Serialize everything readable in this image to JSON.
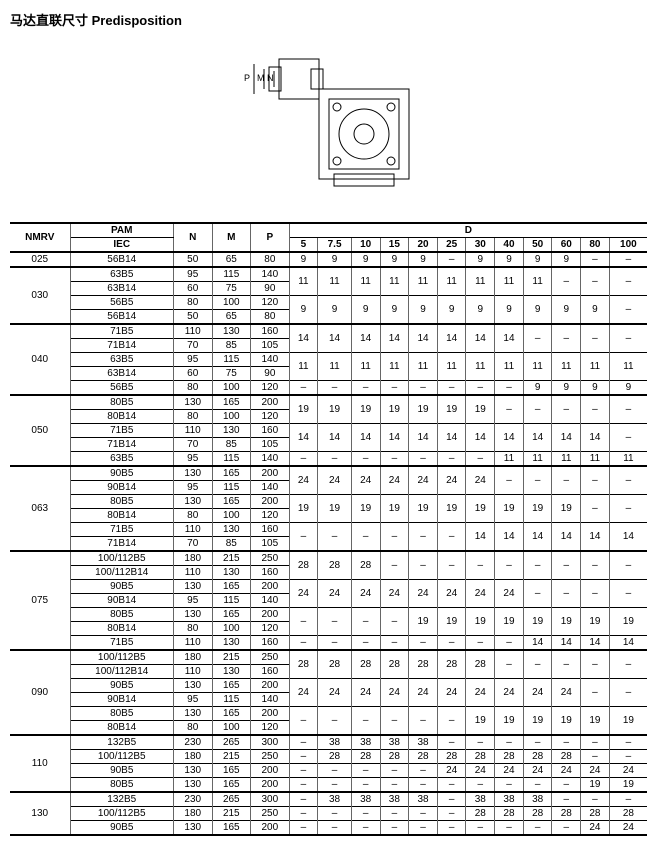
{
  "title": "马达直联尺寸 Predisposition",
  "dim_labels": {
    "p": "P",
    "m": "M",
    "n": "N"
  },
  "headers": {
    "nmrv": "NMRV",
    "pam": "PAM",
    "iec": "IEC",
    "n": "N",
    "m": "M",
    "p": "P",
    "d": "D"
  },
  "d_cols": [
    "5",
    "7.5",
    "10",
    "15",
    "20",
    "25",
    "30",
    "40",
    "50",
    "60",
    "80",
    "100"
  ],
  "groups": [
    {
      "nmrv": "025",
      "rows": [
        {
          "iec": "56B14",
          "n": "50",
          "m": "65",
          "p": "80",
          "d": [
            "9",
            "9",
            "9",
            "9",
            "9",
            "–",
            "9",
            "9",
            "9",
            "9",
            "–",
            "–"
          ]
        }
      ]
    },
    {
      "nmrv": "030",
      "rows": [
        {
          "iec": "63B5",
          "n": "95",
          "m": "115",
          "p": "140",
          "d": [
            "11",
            "11",
            "11",
            "11",
            "11",
            "11",
            "11",
            "11",
            "11",
            "–",
            "–",
            "–"
          ],
          "span": 2
        },
        {
          "iec": "63B14",
          "n": "60",
          "m": "75",
          "p": "90"
        },
        {
          "iec": "56B5",
          "n": "80",
          "m": "100",
          "p": "120",
          "d": [
            "9",
            "9",
            "9",
            "9",
            "9",
            "9",
            "9",
            "9",
            "9",
            "9",
            "9",
            "–"
          ],
          "span": 2
        },
        {
          "iec": "56B14",
          "n": "50",
          "m": "65",
          "p": "80"
        }
      ]
    },
    {
      "nmrv": "040",
      "rows": [
        {
          "iec": "71B5",
          "n": "110",
          "m": "130",
          "p": "160",
          "d": [
            "14",
            "14",
            "14",
            "14",
            "14",
            "14",
            "14",
            "14",
            "–",
            "–",
            "–",
            "–"
          ],
          "span": 2
        },
        {
          "iec": "71B14",
          "n": "70",
          "m": "85",
          "p": "105"
        },
        {
          "iec": "63B5",
          "n": "95",
          "m": "115",
          "p": "140",
          "d": [
            "11",
            "11",
            "11",
            "11",
            "11",
            "11",
            "11",
            "11",
            "11",
            "11",
            "11",
            "11"
          ],
          "span": 2
        },
        {
          "iec": "63B14",
          "n": "60",
          "m": "75",
          "p": "90"
        },
        {
          "iec": "56B5",
          "n": "80",
          "m": "100",
          "p": "120",
          "d": [
            "–",
            "–",
            "–",
            "–",
            "–",
            "–",
            "–",
            "–",
            "9",
            "9",
            "9",
            "9"
          ]
        }
      ]
    },
    {
      "nmrv": "050",
      "rows": [
        {
          "iec": "80B5",
          "n": "130",
          "m": "165",
          "p": "200",
          "d": [
            "19",
            "19",
            "19",
            "19",
            "19",
            "19",
            "19",
            "–",
            "–",
            "–",
            "–",
            "–"
          ],
          "span": 2
        },
        {
          "iec": "80B14",
          "n": "80",
          "m": "100",
          "p": "120"
        },
        {
          "iec": "71B5",
          "n": "110",
          "m": "130",
          "p": "160",
          "d": [
            "14",
            "14",
            "14",
            "14",
            "14",
            "14",
            "14",
            "14",
            "14",
            "14",
            "14",
            "–"
          ],
          "span": 2
        },
        {
          "iec": "71B14",
          "n": "70",
          "m": "85",
          "p": "105"
        },
        {
          "iec": "63B5",
          "n": "95",
          "m": "115",
          "p": "140",
          "d": [
            "–",
            "–",
            "–",
            "–",
            "–",
            "–",
            "–",
            "11",
            "11",
            "11",
            "11",
            "11"
          ]
        }
      ]
    },
    {
      "nmrv": "063",
      "rows": [
        {
          "iec": "90B5",
          "n": "130",
          "m": "165",
          "p": "200",
          "d": [
            "24",
            "24",
            "24",
            "24",
            "24",
            "24",
            "24",
            "–",
            "–",
            "–",
            "–",
            "–"
          ],
          "span": 2
        },
        {
          "iec": "90B14",
          "n": "95",
          "m": "115",
          "p": "140"
        },
        {
          "iec": "80B5",
          "n": "130",
          "m": "165",
          "p": "200",
          "d": [
            "19",
            "19",
            "19",
            "19",
            "19",
            "19",
            "19",
            "19",
            "19",
            "19",
            "–",
            "–"
          ],
          "span": 2
        },
        {
          "iec": "80B14",
          "n": "80",
          "m": "100",
          "p": "120"
        },
        {
          "iec": "71B5",
          "n": "110",
          "m": "130",
          "p": "160",
          "d": [
            "–",
            "–",
            "–",
            "–",
            "–",
            "–",
            "14",
            "14",
            "14",
            "14",
            "14",
            "14"
          ],
          "span": 2
        },
        {
          "iec": "71B14",
          "n": "70",
          "m": "85",
          "p": "105"
        }
      ]
    },
    {
      "nmrv": "075",
      "rows": [
        {
          "iec": "100/112B5",
          "n": "180",
          "m": "215",
          "p": "250",
          "d": [
            "28",
            "28",
            "28",
            "–",
            "–",
            "–",
            "–",
            "–",
            "–",
            "–",
            "–",
            "–"
          ],
          "span": 2
        },
        {
          "iec": "100/112B14",
          "n": "110",
          "m": "130",
          "p": "160"
        },
        {
          "iec": "90B5",
          "n": "130",
          "m": "165",
          "p": "200",
          "d": [
            "24",
            "24",
            "24",
            "24",
            "24",
            "24",
            "24",
            "24",
            "–",
            "–",
            "–",
            "–"
          ],
          "span": 2
        },
        {
          "iec": "90B14",
          "n": "95",
          "m": "115",
          "p": "140"
        },
        {
          "iec": "80B5",
          "n": "130",
          "m": "165",
          "p": "200",
          "d": [
            "–",
            "–",
            "–",
            "–",
            "19",
            "19",
            "19",
            "19",
            "19",
            "19",
            "19",
            "19"
          ],
          "span": 2
        },
        {
          "iec": "80B14",
          "n": "80",
          "m": "100",
          "p": "120"
        },
        {
          "iec": "71B5",
          "n": "110",
          "m": "130",
          "p": "160",
          "d": [
            "–",
            "–",
            "–",
            "–",
            "–",
            "–",
            "–",
            "–",
            "14",
            "14",
            "14",
            "14"
          ]
        }
      ]
    },
    {
      "nmrv": "090",
      "rows": [
        {
          "iec": "100/112B5",
          "n": "180",
          "m": "215",
          "p": "250",
          "d": [
            "28",
            "28",
            "28",
            "28",
            "28",
            "28",
            "28",
            "–",
            "–",
            "–",
            "–",
            "–"
          ],
          "span": 2
        },
        {
          "iec": "100/112B14",
          "n": "110",
          "m": "130",
          "p": "160"
        },
        {
          "iec": "90B5",
          "n": "130",
          "m": "165",
          "p": "200",
          "d": [
            "24",
            "24",
            "24",
            "24",
            "24",
            "24",
            "24",
            "24",
            "24",
            "24",
            "–",
            "–"
          ],
          "span": 2
        },
        {
          "iec": "90B14",
          "n": "95",
          "m": "115",
          "p": "140"
        },
        {
          "iec": "80B5",
          "n": "130",
          "m": "165",
          "p": "200",
          "d": [
            "–",
            "–",
            "–",
            "–",
            "–",
            "–",
            "19",
            "19",
            "19",
            "19",
            "19",
            "19"
          ],
          "span": 2
        },
        {
          "iec": "80B14",
          "n": "80",
          "m": "100",
          "p": "120"
        }
      ]
    },
    {
      "nmrv": "110",
      "rows": [
        {
          "iec": "132B5",
          "n": "230",
          "m": "265",
          "p": "300",
          "d": [
            "–",
            "38",
            "38",
            "38",
            "38",
            "–",
            "–",
            "–",
            "–",
            "–",
            "–",
            "–"
          ]
        },
        {
          "iec": "100/112B5",
          "n": "180",
          "m": "215",
          "p": "250",
          "d": [
            "–",
            "28",
            "28",
            "28",
            "28",
            "28",
            "28",
            "28",
            "28",
            "28",
            "–",
            "–"
          ]
        },
        {
          "iec": "90B5",
          "n": "130",
          "m": "165",
          "p": "200",
          "d": [
            "–",
            "–",
            "–",
            "–",
            "–",
            "24",
            "24",
            "24",
            "24",
            "24",
            "24",
            "24"
          ]
        },
        {
          "iec": "80B5",
          "n": "130",
          "m": "165",
          "p": "200",
          "d": [
            "–",
            "–",
            "–",
            "–",
            "–",
            "–",
            "–",
            "–",
            "–",
            "–",
            "19",
            "19"
          ]
        }
      ]
    },
    {
      "nmrv": "130",
      "rows": [
        {
          "iec": "132B5",
          "n": "230",
          "m": "265",
          "p": "300",
          "d": [
            "–",
            "38",
            "38",
            "38",
            "38",
            "–",
            "38",
            "38",
            "38",
            "–",
            "–",
            "–"
          ]
        },
        {
          "iec": "100/112B5",
          "n": "180",
          "m": "215",
          "p": "250",
          "d": [
            "–",
            "–",
            "–",
            "–",
            "–",
            "–",
            "28",
            "28",
            "28",
            "28",
            "28",
            "28"
          ]
        },
        {
          "iec": "90B5",
          "n": "130",
          "m": "165",
          "p": "200",
          "d": [
            "–",
            "–",
            "–",
            "–",
            "–",
            "–",
            "–",
            "–",
            "–",
            "–",
            "24",
            "24"
          ]
        }
      ]
    }
  ]
}
